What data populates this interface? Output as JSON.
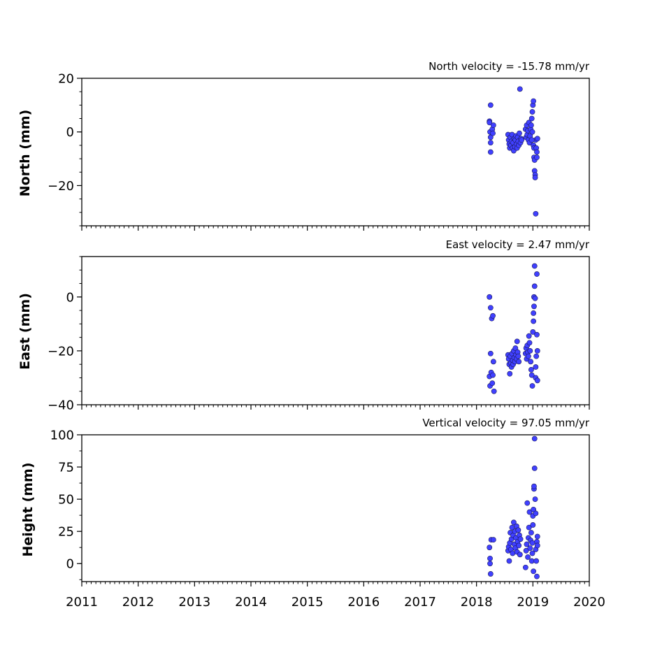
{
  "chart_data": [
    {
      "type": "scatter",
      "velocity_label": "North velocity = -15.78 mm/yr",
      "ylabel": "North (mm)",
      "ylim": [
        -35,
        20
      ],
      "yticks": [
        20,
        0,
        -20
      ],
      "ytick_labels": [
        "20",
        "0",
        "−20"
      ],
      "xlim": [
        2011,
        2020
      ],
      "marker_color": "#4040ff",
      "points": [
        [
          2018.23,
          4
        ],
        [
          2018.23,
          3.5
        ],
        [
          2018.24,
          0
        ],
        [
          2018.25,
          10
        ],
        [
          2018.25,
          -2
        ],
        [
          2018.25,
          -4
        ],
        [
          2018.25,
          -7.5
        ],
        [
          2018.28,
          1
        ],
        [
          2018.29,
          -0.5
        ],
        [
          2018.3,
          2.5
        ],
        [
          2018.56,
          -1
        ],
        [
          2018.57,
          -3
        ],
        [
          2018.58,
          -4.5
        ],
        [
          2018.59,
          -6
        ],
        [
          2018.6,
          -2
        ],
        [
          2018.61,
          -5
        ],
        [
          2018.62,
          -3.5
        ],
        [
          2018.63,
          -1
        ],
        [
          2018.64,
          -6
        ],
        [
          2018.65,
          -4
        ],
        [
          2018.66,
          -7
        ],
        [
          2018.67,
          -2.5
        ],
        [
          2018.68,
          -5.5
        ],
        [
          2018.69,
          -3
        ],
        [
          2018.7,
          -1.5
        ],
        [
          2018.71,
          -4.5
        ],
        [
          2018.72,
          -6
        ],
        [
          2018.73,
          -2
        ],
        [
          2018.74,
          -3.5
        ],
        [
          2018.75,
          -5
        ],
        [
          2018.76,
          -0.5
        ],
        [
          2018.77,
          16
        ],
        [
          2018.78,
          -4
        ],
        [
          2018.79,
          -2.5
        ],
        [
          2018.8,
          -3
        ],
        [
          2018.87,
          1
        ],
        [
          2018.88,
          -2
        ],
        [
          2018.89,
          2.5
        ],
        [
          2018.9,
          -1
        ],
        [
          2018.91,
          0.5
        ],
        [
          2018.92,
          -3
        ],
        [
          2018.93,
          3.5
        ],
        [
          2018.94,
          -4
        ],
        [
          2018.95,
          -1.5
        ],
        [
          2018.96,
          1
        ],
        [
          2018.97,
          2.5
        ],
        [
          2018.98,
          5
        ],
        [
          2018.99,
          7.5
        ],
        [
          2019.0,
          10
        ],
        [
          2019.01,
          11.5
        ],
        [
          2019.01,
          -5
        ],
        [
          2019.02,
          -6
        ],
        [
          2019.02,
          -9.5
        ],
        [
          2019.03,
          -10.5
        ],
        [
          2019.03,
          -14.5
        ],
        [
          2019.04,
          -16
        ],
        [
          2019.04,
          -17
        ],
        [
          2019.05,
          -30.5
        ],
        [
          2019.05,
          -3
        ],
        [
          2019.06,
          -6
        ],
        [
          2019.07,
          -7.5
        ],
        [
          2019.07,
          -9.5
        ],
        [
          2019.08,
          -2.5
        ],
        [
          2018.98,
          -3
        ],
        [
          2018.99,
          0
        ]
      ]
    },
    {
      "type": "scatter",
      "velocity_label": "East velocity = 2.47 mm/yr",
      "ylabel": "East (mm)",
      "ylim": [
        -40,
        15
      ],
      "yticks": [
        0,
        -20,
        -40
      ],
      "ytick_labels": [
        "0",
        "−20",
        "−40"
      ],
      "xlim": [
        2011,
        2020
      ],
      "marker_color": "#4040ff",
      "points": [
        [
          2018.23,
          0
        ],
        [
          2018.25,
          -4
        ],
        [
          2018.27,
          -8
        ],
        [
          2018.29,
          -7
        ],
        [
          2018.23,
          -29.5
        ],
        [
          2018.24,
          -33
        ],
        [
          2018.25,
          -21
        ],
        [
          2018.26,
          -28
        ],
        [
          2018.28,
          -32
        ],
        [
          2018.29,
          -29
        ],
        [
          2018.3,
          -24
        ],
        [
          2018.31,
          -35
        ],
        [
          2018.56,
          -21.5
        ],
        [
          2018.57,
          -23
        ],
        [
          2018.58,
          -25
        ],
        [
          2018.59,
          -28.5
        ],
        [
          2018.6,
          -22
        ],
        [
          2018.61,
          -24.5
        ],
        [
          2018.62,
          -26
        ],
        [
          2018.63,
          -21
        ],
        [
          2018.64,
          -23.5
        ],
        [
          2018.65,
          -25
        ],
        [
          2018.66,
          -20
        ],
        [
          2018.67,
          -22.5
        ],
        [
          2018.68,
          -24
        ],
        [
          2018.69,
          -19
        ],
        [
          2018.7,
          -21.5
        ],
        [
          2018.71,
          -23
        ],
        [
          2018.72,
          -16.5
        ],
        [
          2018.73,
          -20.5
        ],
        [
          2018.74,
          -22
        ],
        [
          2018.75,
          -24
        ],
        [
          2018.87,
          -21
        ],
        [
          2018.88,
          -19
        ],
        [
          2018.89,
          -23
        ],
        [
          2018.9,
          -18
        ],
        [
          2018.91,
          -20.5
        ],
        [
          2018.92,
          -22
        ],
        [
          2018.93,
          -14.5
        ],
        [
          2018.94,
          -17
        ],
        [
          2018.95,
          -20
        ],
        [
          2018.96,
          -24
        ],
        [
          2018.97,
          -27
        ],
        [
          2018.98,
          -29
        ],
        [
          2018.99,
          -33
        ],
        [
          2019.0,
          -13
        ],
        [
          2019.01,
          -9
        ],
        [
          2019.01,
          -6
        ],
        [
          2019.02,
          -3.5
        ],
        [
          2019.02,
          0
        ],
        [
          2019.03,
          4
        ],
        [
          2019.03,
          11.5
        ],
        [
          2019.04,
          -0.5
        ],
        [
          2019.05,
          -26
        ],
        [
          2019.05,
          -30
        ],
        [
          2019.06,
          -22
        ],
        [
          2019.07,
          8.5
        ],
        [
          2019.07,
          -14
        ],
        [
          2019.08,
          -31
        ],
        [
          2019.08,
          -20
        ]
      ]
    },
    {
      "type": "scatter",
      "velocity_label": "Vertical velocity = 97.05 mm/yr",
      "ylabel": "Height (mm)",
      "ylim": [
        -14,
        100
      ],
      "yticks": [
        100,
        75,
        50,
        25,
        0
      ],
      "ytick_labels": [
        "100",
        "75",
        "50",
        "25",
        "0"
      ],
      "xlim": [
        2011,
        2020
      ],
      "xticks": [
        2011,
        2012,
        2013,
        2014,
        2015,
        2016,
        2017,
        2018,
        2019,
        2020
      ],
      "xtick_labels": [
        "2011",
        "2012",
        "2013",
        "2014",
        "2015",
        "2016",
        "2017",
        "2018",
        "2019",
        "2020"
      ],
      "marker_color": "#4040ff",
      "points": [
        [
          2018.23,
          12.5
        ],
        [
          2018.24,
          4
        ],
        [
          2018.24,
          0
        ],
        [
          2018.25,
          -8
        ],
        [
          2018.26,
          18.5
        ],
        [
          2018.3,
          18.5
        ],
        [
          2018.56,
          10
        ],
        [
          2018.57,
          13
        ],
        [
          2018.58,
          2
        ],
        [
          2018.59,
          16
        ],
        [
          2018.6,
          24
        ],
        [
          2018.61,
          11
        ],
        [
          2018.62,
          19
        ],
        [
          2018.63,
          28
        ],
        [
          2018.64,
          8
        ],
        [
          2018.65,
          22
        ],
        [
          2018.66,
          32
        ],
        [
          2018.67,
          15
        ],
        [
          2018.68,
          25
        ],
        [
          2018.69,
          12
        ],
        [
          2018.7,
          20
        ],
        [
          2018.71,
          29
        ],
        [
          2018.72,
          9
        ],
        [
          2018.73,
          17
        ],
        [
          2018.74,
          26
        ],
        [
          2018.75,
          14
        ],
        [
          2018.76,
          22
        ],
        [
          2018.77,
          7
        ],
        [
          2018.78,
          19
        ],
        [
          2018.87,
          -3
        ],
        [
          2018.88,
          10
        ],
        [
          2018.89,
          15
        ],
        [
          2018.9,
          47
        ],
        [
          2018.91,
          5
        ],
        [
          2018.92,
          20
        ],
        [
          2018.93,
          28
        ],
        [
          2018.94,
          40
        ],
        [
          2018.95,
          12
        ],
        [
          2018.96,
          18
        ],
        [
          2018.97,
          24
        ],
        [
          2018.98,
          2
        ],
        [
          2018.99,
          8
        ],
        [
          2019.0,
          37
        ],
        [
          2019.01,
          42
        ],
        [
          2019.01,
          -6
        ],
        [
          2019.02,
          58
        ],
        [
          2019.02,
          60
        ],
        [
          2019.03,
          74
        ],
        [
          2019.03,
          97
        ],
        [
          2019.04,
          50
        ],
        [
          2019.05,
          39
        ],
        [
          2019.05,
          11
        ],
        [
          2019.06,
          2
        ],
        [
          2019.07,
          -10
        ],
        [
          2019.07,
          17
        ],
        [
          2019.08,
          21
        ],
        [
          2019.08,
          14
        ],
        [
          2018.99,
          16
        ],
        [
          2019.0,
          30
        ]
      ]
    }
  ]
}
